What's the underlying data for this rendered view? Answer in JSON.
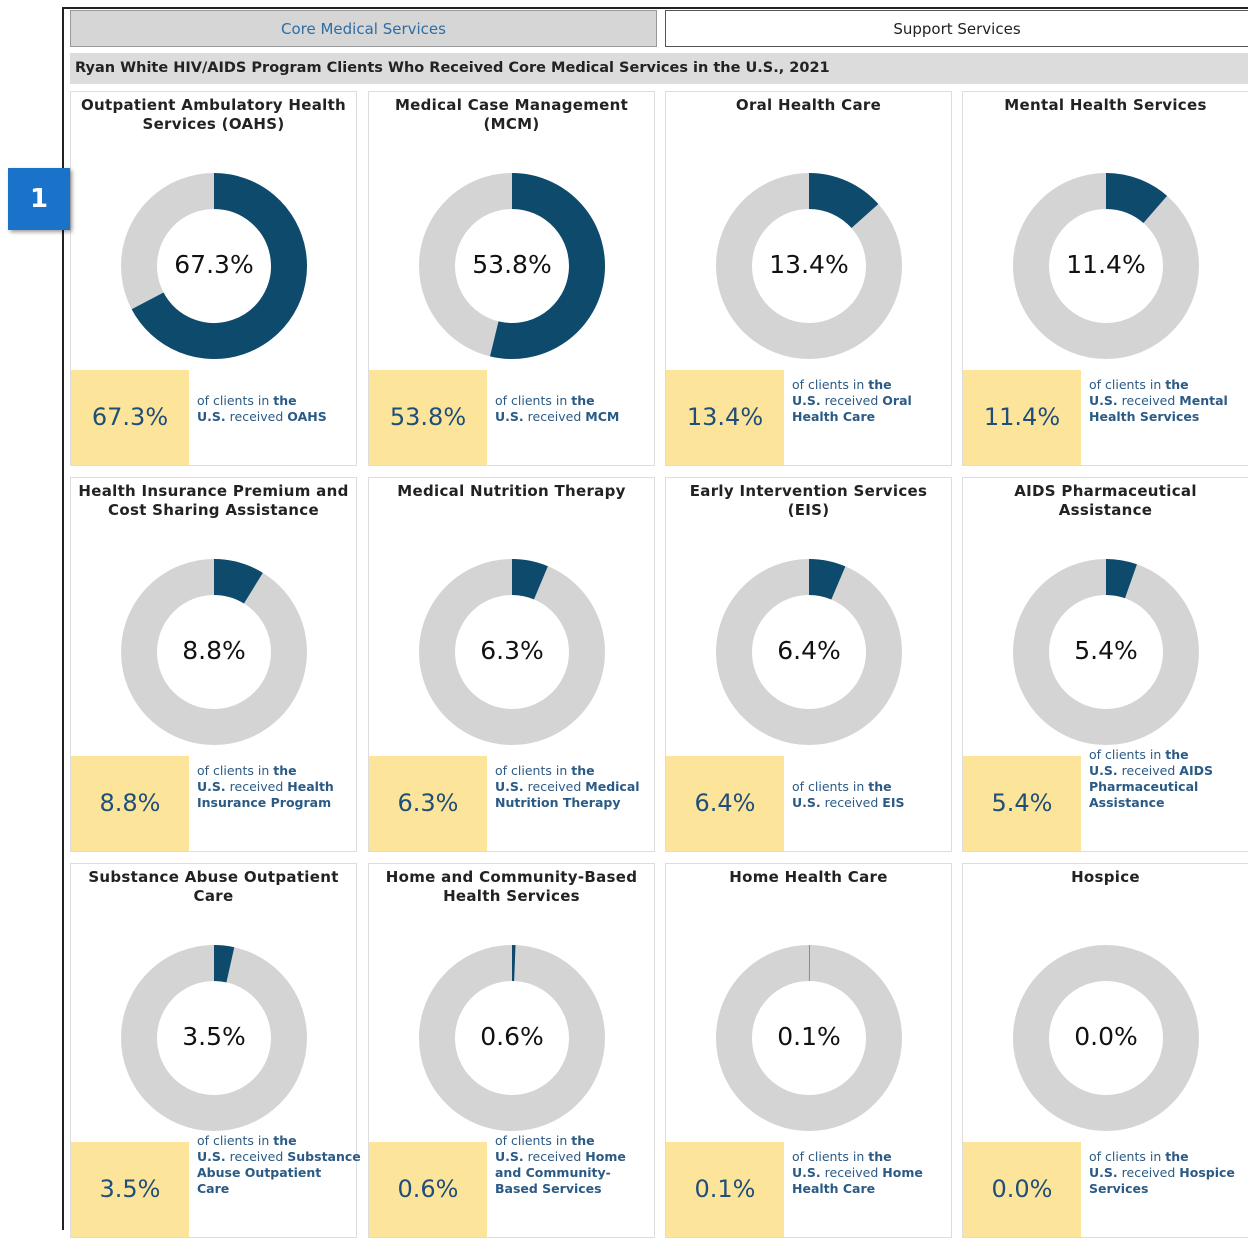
{
  "tabs": [
    "Core Medical Services",
    "Support Services"
  ],
  "badge": "1",
  "subtitle": "Ryan White HIV/AIDS Program Clients Who Received Core Medical Services in the U.S., 2021",
  "caption_prefix": "of clients in",
  "caption_place": "the U.S.",
  "caption_verb": "received",
  "arc_color": "#0d4a6b",
  "ring_color": "#d4d4d4",
  "cards": [
    {
      "title": "Outpatient Ambulatory Health Services (OAHS)",
      "value": 67.3,
      "value_label": "67.3%",
      "service": "OAHS"
    },
    {
      "title": "Medical Case Management (MCM)",
      "value": 53.8,
      "value_label": "53.8%",
      "service": "MCM"
    },
    {
      "title": "Oral Health Care",
      "value": 13.4,
      "value_label": "13.4%",
      "service": "Oral Health Care"
    },
    {
      "title": "Mental Health Services",
      "value": 11.4,
      "value_label": "11.4%",
      "service": "Mental Health Services"
    },
    {
      "title": "Health Insurance Premium and Cost Sharing Assistance",
      "value": 8.8,
      "value_label": "8.8%",
      "service": "Health Insurance Program"
    },
    {
      "title": "Medical Nutrition Therapy",
      "value": 6.3,
      "value_label": "6.3%",
      "service": "Medical Nutrition Therapy"
    },
    {
      "title": "Early Intervention Services (EIS)",
      "value": 6.4,
      "value_label": "6.4%",
      "service": "EIS"
    },
    {
      "title": "AIDS Pharmaceutical Assistance",
      "value": 5.4,
      "value_label": "5.4%",
      "service": "AIDS Pharmaceutical Assistance"
    },
    {
      "title": "Substance Abuse Outpatient Care",
      "value": 3.5,
      "value_label": "3.5%",
      "service": "Substance Abuse Outpatient Care"
    },
    {
      "title": "Home and Community-Based Health Services",
      "value": 0.6,
      "value_label": "0.6%",
      "service": "Home and Community-Based Services"
    },
    {
      "title": "Home Health Care",
      "value": 0.1,
      "value_label": "0.1%",
      "service": "Home Health Care"
    },
    {
      "title": "Hospice",
      "value": 0.0,
      "value_label": "0.0%",
      "service": "Hospice Services"
    }
  ]
}
